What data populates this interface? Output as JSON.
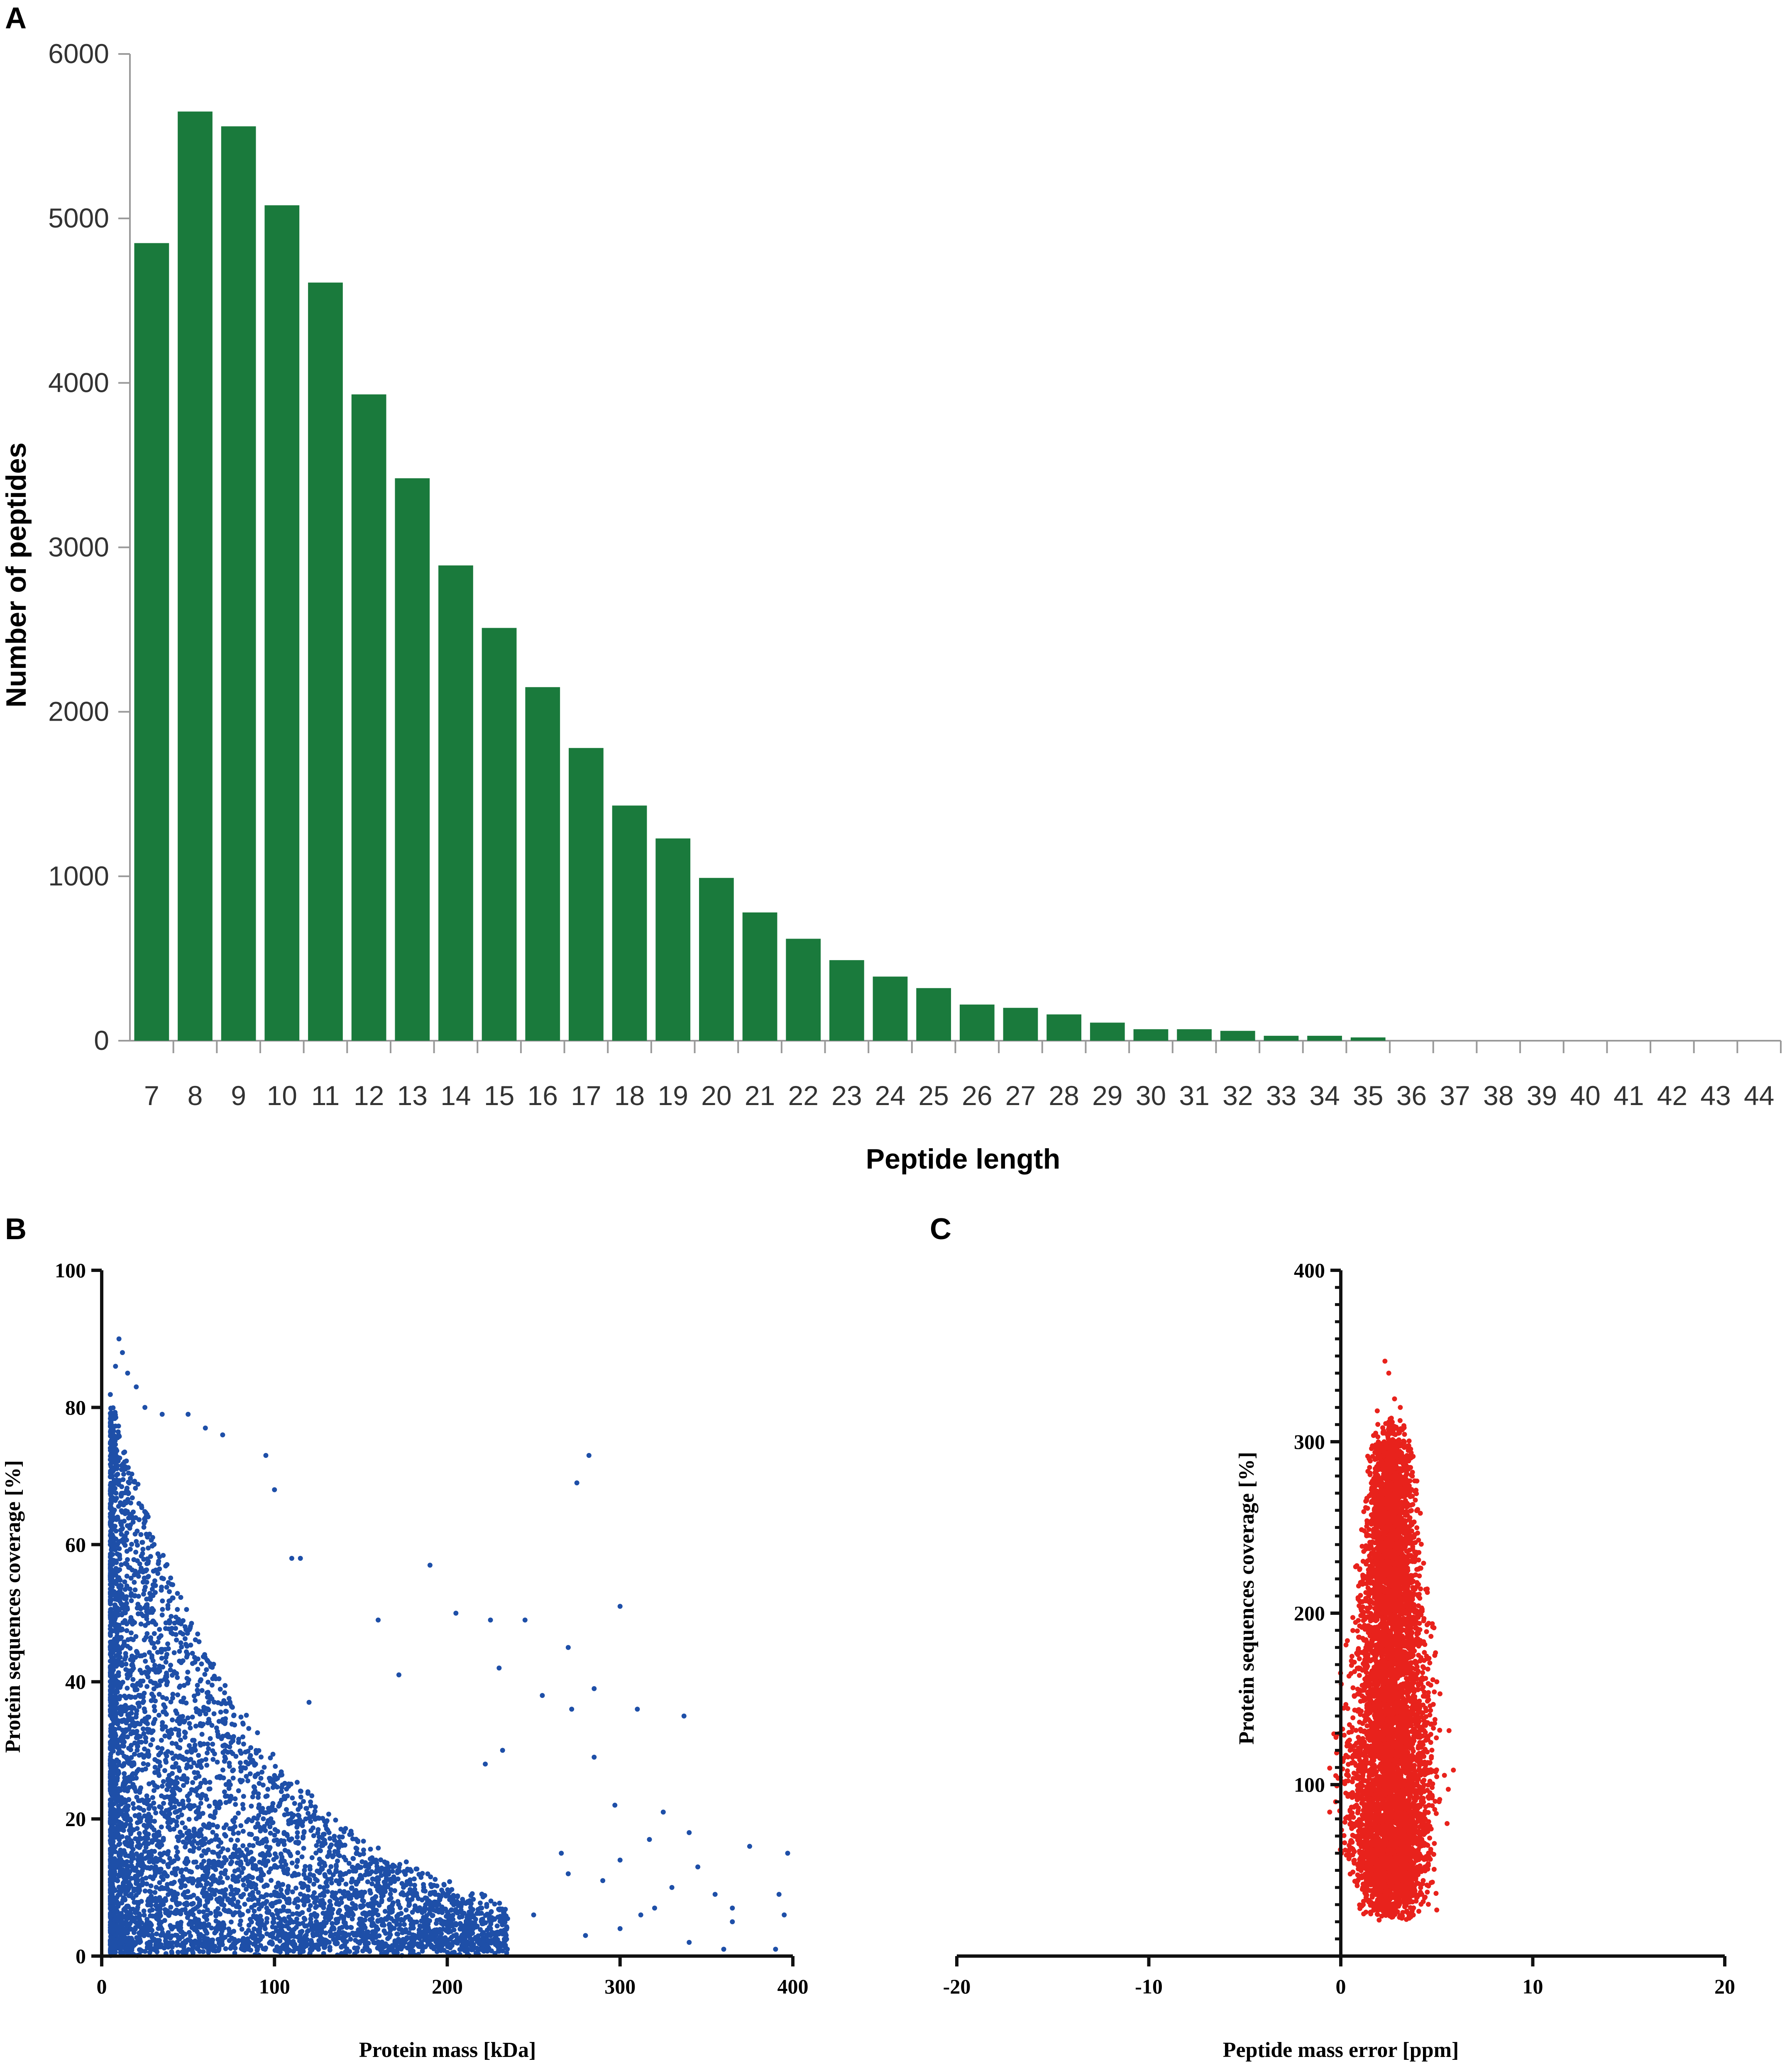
{
  "panels": {
    "a": "A",
    "b": "B",
    "c": "C"
  },
  "chart_data": [
    {
      "type": "bar",
      "title": "",
      "xlabel": "Peptide length",
      "ylabel": "Number of peptides",
      "ylim": [
        0,
        6000
      ],
      "yticks": [
        "0",
        "1000",
        "2000",
        "3000",
        "4000",
        "5000",
        "6000"
      ],
      "grid": false,
      "color": "#1a7a3c",
      "categories": [
        "7",
        "8",
        "9",
        "10",
        "11",
        "12",
        "13",
        "14",
        "15",
        "16",
        "17",
        "18",
        "19",
        "20",
        "21",
        "22",
        "23",
        "24",
        "25",
        "26",
        "27",
        "28",
        "29",
        "30",
        "31",
        "32",
        "33",
        "34",
        "35",
        "36",
        "37",
        "38",
        "39",
        "40",
        "41",
        "42",
        "43",
        "44"
      ],
      "values": [
        4850,
        5650,
        5560,
        5080,
        4610,
        3930,
        3420,
        2890,
        2510,
        2150,
        1780,
        1430,
        1230,
        990,
        780,
        620,
        490,
        390,
        320,
        220,
        200,
        160,
        110,
        70,
        70,
        60,
        30,
        30,
        20,
        0,
        0,
        0,
        0,
        0,
        0,
        0,
        0,
        0
      ]
    },
    {
      "type": "scatter",
      "title": "",
      "xlabel": "Protein mass [kDa]",
      "ylabel": "Protein sequences coverage [%]",
      "xlim": [
        0,
        400
      ],
      "ylim": [
        0,
        100
      ],
      "xticks": [
        "0",
        "100",
        "200",
        "300",
        "400"
      ],
      "yticks": [
        "0",
        "20",
        "40",
        "60",
        "80",
        "100"
      ],
      "color": "#1e4fa8",
      "points": [
        [
          10,
          90
        ],
        [
          12,
          88
        ],
        [
          8,
          86
        ],
        [
          15,
          85
        ],
        [
          20,
          83
        ],
        [
          25,
          80
        ],
        [
          35,
          79
        ],
        [
          50,
          79
        ],
        [
          60,
          77
        ],
        [
          70,
          76
        ],
        [
          95,
          73
        ],
        [
          282,
          73
        ],
        [
          275,
          69
        ],
        [
          100,
          68
        ],
        [
          110,
          58
        ],
        [
          115,
          58
        ],
        [
          190,
          57
        ],
        [
          300,
          51
        ],
        [
          205,
          50
        ],
        [
          225,
          49
        ],
        [
          160,
          49
        ],
        [
          245,
          49
        ],
        [
          270,
          45
        ],
        [
          230,
          42
        ],
        [
          172,
          41
        ],
        [
          285,
          39
        ],
        [
          255,
          38
        ],
        [
          120,
          37
        ],
        [
          310,
          36
        ],
        [
          337,
          35
        ],
        [
          272,
          36
        ],
        [
          232,
          30
        ],
        [
          222,
          28
        ],
        [
          285,
          29
        ],
        [
          297,
          22
        ],
        [
          325,
          21
        ],
        [
          340,
          18
        ],
        [
          317,
          17
        ],
        [
          375,
          16
        ],
        [
          397,
          15
        ],
        [
          266,
          15
        ],
        [
          300,
          14
        ],
        [
          345,
          13
        ],
        [
          270,
          12
        ],
        [
          290,
          11
        ],
        [
          330,
          10
        ],
        [
          355,
          9
        ],
        [
          392,
          9
        ],
        [
          320,
          7
        ],
        [
          365,
          7
        ],
        [
          395,
          6
        ],
        [
          312,
          6
        ],
        [
          365,
          5
        ],
        [
          300,
          4
        ],
        [
          280,
          3
        ],
        [
          340,
          2
        ],
        [
          360,
          1
        ],
        [
          390,
          1
        ],
        [
          250,
          6
        ],
        [
          215,
          4
        ],
        [
          180,
          5
        ]
      ]
    },
    {
      "type": "scatter",
      "title": "",
      "xlabel": "Peptide mass error [ppm]",
      "ylabel": "Protein sequences coverage [%]",
      "xlim": [
        -20,
        20
      ],
      "ylim": [
        0,
        400
      ],
      "xticks": [
        "-20",
        "-10",
        "0",
        "10",
        "20"
      ],
      "yticks": [
        "100",
        "200",
        "300",
        "400"
      ],
      "color": "#e8221c",
      "points": [
        [
          2.3,
          347
        ],
        [
          2.5,
          340
        ],
        [
          2.8,
          325
        ],
        [
          3.1,
          320
        ],
        [
          1.9,
          318
        ],
        [
          2.6,
          312
        ],
        [
          2.2,
          305
        ],
        [
          3.3,
          300
        ],
        [
          1.6,
          296
        ],
        [
          2.9,
          292
        ],
        [
          2.4,
          288
        ],
        [
          3.6,
          285
        ],
        [
          1.8,
          280
        ]
      ]
    }
  ]
}
